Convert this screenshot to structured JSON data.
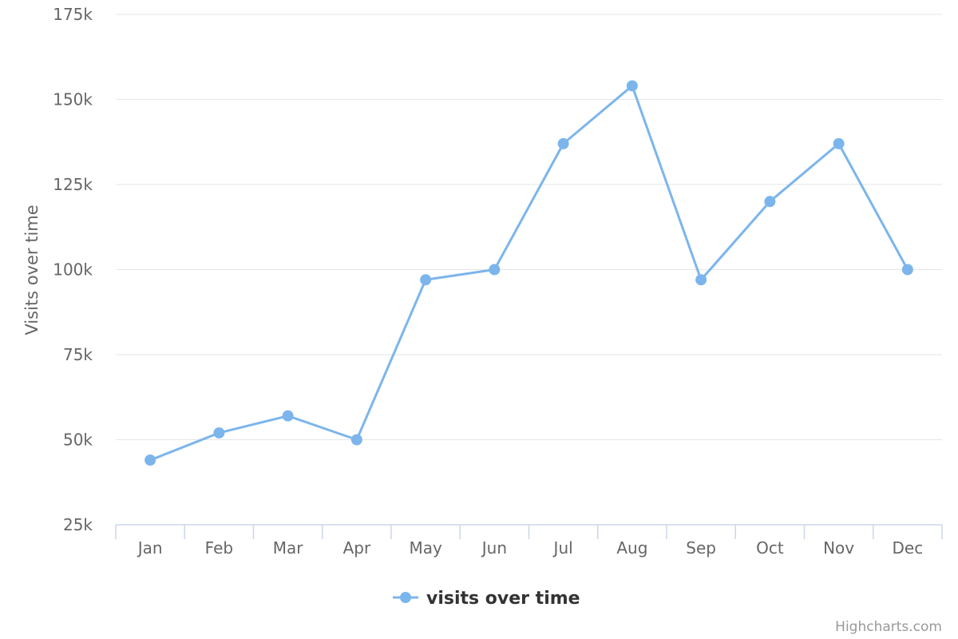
{
  "chart_data": {
    "type": "line",
    "title": "",
    "xlabel": "",
    "ylabel": "Visits over time",
    "categories": [
      "Jan",
      "Feb",
      "Mar",
      "Apr",
      "May",
      "Jun",
      "Jul",
      "Aug",
      "Sep",
      "Oct",
      "Nov",
      "Dec"
    ],
    "series": [
      {
        "name": "visits over time",
        "color": "#7cb5ec",
        "values": [
          44000,
          52000,
          57000,
          50000,
          97000,
          100000,
          137000,
          154000,
          97000,
          120000,
          137000,
          100000
        ]
      }
    ],
    "ylim": [
      25000,
      175000
    ],
    "y_ticks": [
      25000,
      50000,
      75000,
      100000,
      125000,
      150000,
      175000
    ],
    "y_tick_labels": [
      "25k",
      "50k",
      "75k",
      "100k",
      "125k",
      "150k",
      "175k"
    ],
    "grid": true,
    "legend_position": "bottom-center"
  },
  "credits": "Highcharts.com"
}
